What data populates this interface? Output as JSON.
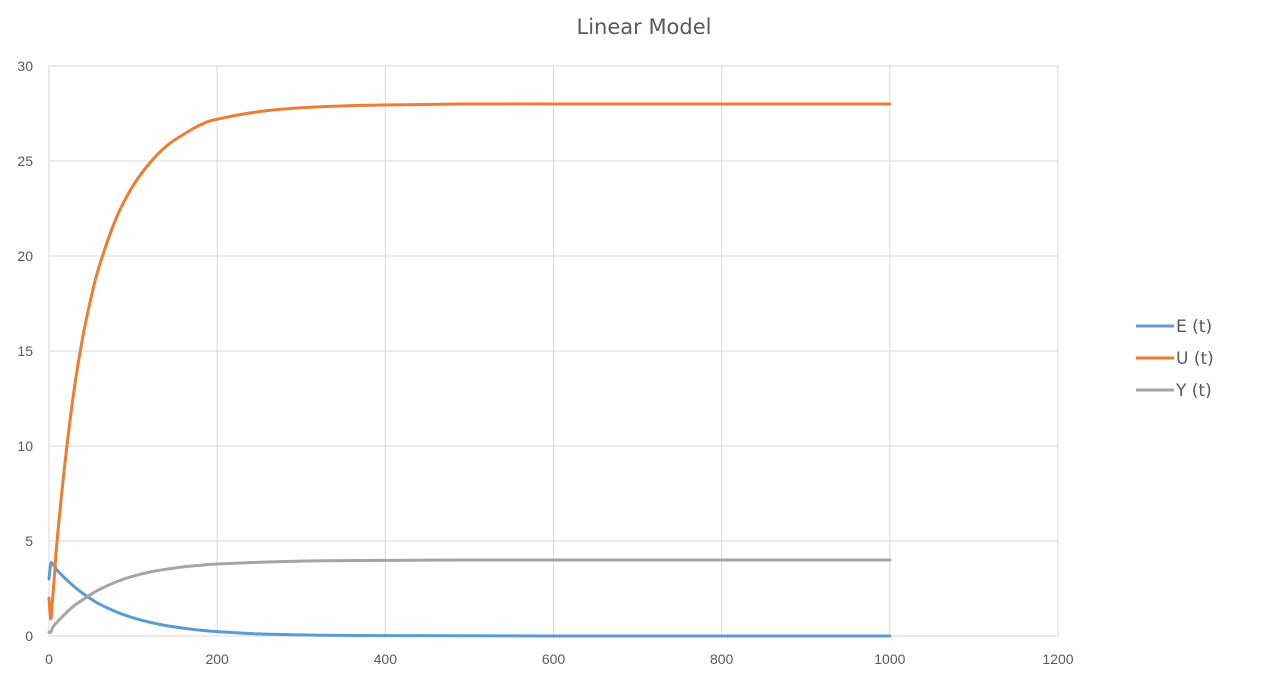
{
  "chart_data": {
    "type": "line",
    "title": "Linear Model",
    "xlabel": "",
    "ylabel": "",
    "xlim": [
      0,
      1200
    ],
    "ylim": [
      0,
      30
    ],
    "x_ticks": [
      0,
      200,
      400,
      600,
      800,
      1000,
      1200
    ],
    "y_ticks": [
      0,
      5,
      10,
      15,
      20,
      25,
      30
    ],
    "grid": true,
    "legend_position": "right",
    "series": [
      {
        "name": "E (t)",
        "color": "#5b9bd5",
        "x": [
          0,
          2,
          4,
          6,
          10,
          20,
          30,
          40,
          50,
          60,
          80,
          100,
          120,
          140,
          160,
          180,
          200,
          250,
          300,
          350,
          400,
          500,
          600,
          700,
          800,
          900,
          1000
        ],
        "y": [
          3.0,
          3.8,
          3.8,
          3.7,
          3.45,
          3.0,
          2.6,
          2.25,
          1.95,
          1.68,
          1.27,
          0.96,
          0.72,
          0.54,
          0.41,
          0.31,
          0.23,
          0.11,
          0.06,
          0.03,
          0.02,
          0.01,
          0.0,
          0.0,
          0.0,
          0.0,
          0.0
        ]
      },
      {
        "name": "U (t)",
        "color": "#ed7d31",
        "x": [
          0,
          2,
          4,
          6,
          10,
          20,
          30,
          40,
          50,
          60,
          80,
          100,
          120,
          140,
          160,
          180,
          200,
          250,
          300,
          350,
          400,
          500,
          600,
          700,
          800,
          900,
          1000
        ],
        "y": [
          2.0,
          0.9,
          1.8,
          2.9,
          5.2,
          9.5,
          13.0,
          15.7,
          17.8,
          19.5,
          22.0,
          23.7,
          24.9,
          25.8,
          26.4,
          26.9,
          27.2,
          27.6,
          27.8,
          27.9,
          27.95,
          28.0,
          28.0,
          28.0,
          28.0,
          28.0,
          28.0
        ]
      },
      {
        "name": "Y (t)",
        "color": "#a5a5a5",
        "x": [
          0,
          2,
          4,
          6,
          10,
          20,
          30,
          40,
          50,
          60,
          80,
          100,
          120,
          140,
          160,
          180,
          200,
          250,
          300,
          350,
          400,
          500,
          600,
          700,
          800,
          900,
          1000
        ],
        "y": [
          0.2,
          0.2,
          0.4,
          0.55,
          0.75,
          1.2,
          1.6,
          1.9,
          2.2,
          2.45,
          2.85,
          3.15,
          3.37,
          3.52,
          3.64,
          3.72,
          3.79,
          3.88,
          3.94,
          3.97,
          3.98,
          4.0,
          4.0,
          4.0,
          4.0,
          4.0,
          4.0
        ]
      }
    ]
  }
}
